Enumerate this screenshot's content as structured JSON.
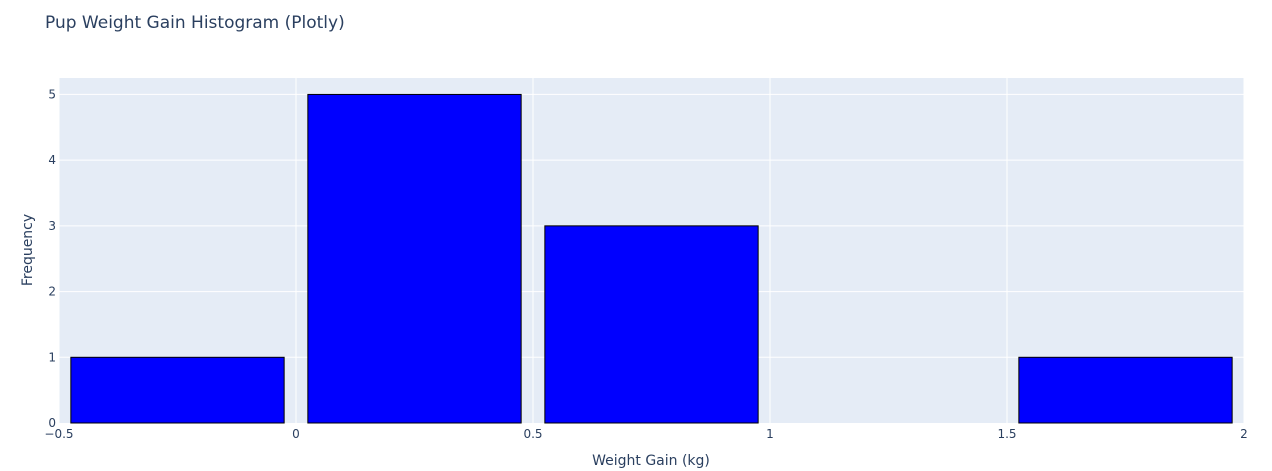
{
  "chart_data": {
    "type": "bar",
    "title": "Pup Weight Gain Histogram (Plotly)",
    "xlabel": "Weight Gain (kg)",
    "ylabel": "Frequency",
    "xlim": [
      -0.5,
      2
    ],
    "ylim": [
      0,
      5.25
    ],
    "bins": [
      {
        "start": -0.5,
        "end": 0.0,
        "count": 1
      },
      {
        "start": 0.0,
        "end": 0.5,
        "count": 5
      },
      {
        "start": 0.5,
        "end": 1.0,
        "count": 3
      },
      {
        "start": 1.0,
        "end": 1.5,
        "count": 0
      },
      {
        "start": 1.5,
        "end": 2.0,
        "count": 1
      }
    ],
    "x_ticks": [
      -0.5,
      0,
      0.5,
      1,
      1.5,
      2
    ],
    "x_tick_labels": [
      "−0.5",
      "0",
      "0.5",
      "1",
      "1.5",
      "2"
    ],
    "y_ticks": [
      0,
      1,
      2,
      3,
      4,
      5
    ],
    "y_tick_labels": [
      "0",
      "1",
      "2",
      "3",
      "4",
      "5"
    ],
    "bar_color": "#0000ff",
    "bar_edge_color": "#000000",
    "plot_bg": "#e5ecf6",
    "grid": true
  }
}
